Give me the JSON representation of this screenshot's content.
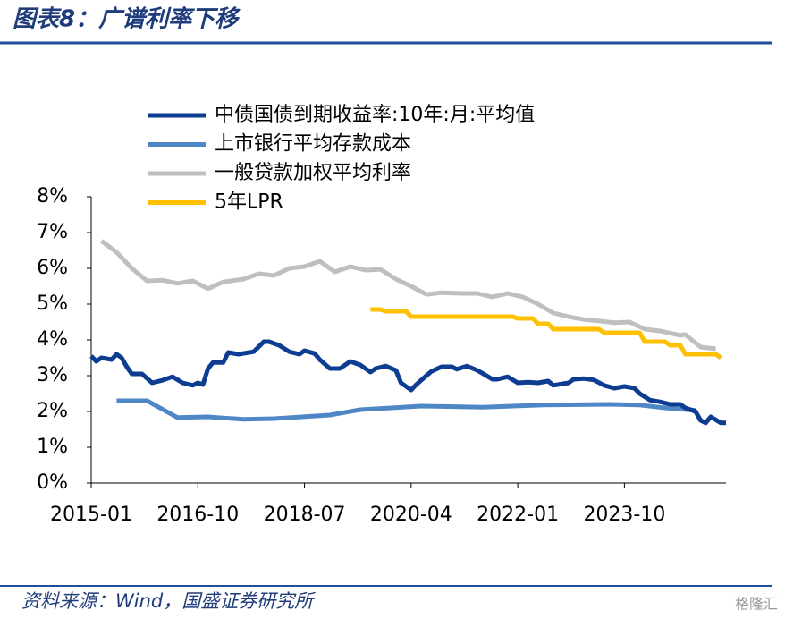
{
  "header": {
    "title": "图表8：广谱利率下移"
  },
  "chart_data": {
    "type": "line",
    "xlim": [
      "2015-01",
      "2025-06"
    ],
    "xticks": [
      "2015-01",
      "2016-10",
      "2018-07",
      "2020-04",
      "2022-01",
      "2023-10"
    ],
    "ylim": [
      0,
      8
    ],
    "yticks": [
      {
        "value": 0,
        "label": "0%"
      },
      {
        "value": 1,
        "label": "1%"
      },
      {
        "value": 2,
        "label": "2%"
      },
      {
        "value": 3,
        "label": "3%"
      },
      {
        "value": 4,
        "label": "4%"
      },
      {
        "value": 5,
        "label": "5%"
      },
      {
        "value": 6,
        "label": "6%"
      },
      {
        "value": 7,
        "label": "7%"
      },
      {
        "value": 8,
        "label": "8%"
      }
    ],
    "legend": "top-left",
    "series": [
      {
        "name": "中债国债到期收益率:10年:月:平均值",
        "color": "#0d3d91",
        "x": [
          "2015-01",
          "2015-02",
          "2015-03",
          "2015-05",
          "2015-06",
          "2015-07",
          "2015-08",
          "2015-09",
          "2015-11",
          "2016-01",
          "2016-03",
          "2016-05",
          "2016-07",
          "2016-09",
          "2016-10",
          "2016-11",
          "2016-12",
          "2017-01",
          "2017-03",
          "2017-04",
          "2017-06",
          "2017-09",
          "2017-11",
          "2017-12",
          "2018-02",
          "2018-04",
          "2018-06",
          "2018-07",
          "2018-09",
          "2018-10",
          "2018-12",
          "2019-02",
          "2019-04",
          "2019-06",
          "2019-08",
          "2019-09",
          "2019-11",
          "2020-01",
          "2020-02",
          "2020-04",
          "2020-05",
          "2020-07",
          "2020-08",
          "2020-10",
          "2020-12",
          "2021-01",
          "2021-03",
          "2021-05",
          "2021-06",
          "2021-08",
          "2021-09",
          "2021-11",
          "2022-01",
          "2022-03",
          "2022-05",
          "2022-07",
          "2022-08",
          "2022-11",
          "2022-12",
          "2023-02",
          "2023-04",
          "2023-06",
          "2023-08",
          "2023-10",
          "2023-12",
          "2024-01",
          "2024-03",
          "2024-05",
          "2024-07",
          "2024-09",
          "2024-10",
          "2024-12",
          "2025-01",
          "2025-02",
          "2025-03",
          "2025-05",
          "2025-06"
        ],
        "values": [
          3.55,
          3.4,
          3.5,
          3.45,
          3.6,
          3.5,
          3.25,
          3.05,
          3.05,
          2.8,
          2.87,
          2.97,
          2.8,
          2.73,
          2.8,
          2.75,
          3.2,
          3.37,
          3.37,
          3.65,
          3.6,
          3.67,
          3.95,
          3.95,
          3.85,
          3.67,
          3.6,
          3.7,
          3.62,
          3.45,
          3.2,
          3.2,
          3.4,
          3.3,
          3.1,
          3.2,
          3.27,
          3.15,
          2.8,
          2.6,
          2.75,
          3.0,
          3.12,
          3.25,
          3.25,
          3.18,
          3.27,
          3.15,
          3.07,
          2.9,
          2.9,
          2.97,
          2.8,
          2.82,
          2.8,
          2.85,
          2.73,
          2.8,
          2.9,
          2.92,
          2.88,
          2.73,
          2.65,
          2.7,
          2.65,
          2.5,
          2.32,
          2.27,
          2.2,
          2.2,
          2.1,
          2.0,
          1.75,
          1.68,
          1.85,
          1.68,
          1.68
        ]
      },
      {
        "name": "上市银行平均存款成本",
        "color": "#4f86c6",
        "x": [
          "2015-06",
          "2015-12",
          "2016-06",
          "2016-12",
          "2017-07",
          "2018-01",
          "2018-12",
          "2019-06",
          "2020-06",
          "2021-06",
          "2022-06",
          "2023-07",
          "2024-01",
          "2024-06",
          "2024-12"
        ],
        "values": [
          2.3,
          2.3,
          1.83,
          1.85,
          1.78,
          1.8,
          1.9,
          2.05,
          2.15,
          2.12,
          2.18,
          2.2,
          2.18,
          2.1,
          2.03
        ]
      },
      {
        "name": "一般贷款加权平均利率",
        "color": "#bfbfbf",
        "x": [
          "2015-03",
          "2015-06",
          "2015-09",
          "2015-12",
          "2016-03",
          "2016-06",
          "2016-09",
          "2016-12",
          "2017-03",
          "2017-07",
          "2017-10",
          "2018-01",
          "2018-04",
          "2018-07",
          "2018-10",
          "2019-01",
          "2019-04",
          "2019-07",
          "2019-10",
          "2020-01",
          "2020-04",
          "2020-07",
          "2020-10",
          "2021-02",
          "2021-05",
          "2021-08",
          "2021-11",
          "2022-02",
          "2022-05",
          "2022-08",
          "2022-11",
          "2023-02",
          "2023-05",
          "2023-08",
          "2023-11",
          "2024-02",
          "2024-05",
          "2024-09",
          "2024-10",
          "2025-01",
          "2025-04"
        ],
        "values": [
          6.77,
          6.45,
          6.0,
          5.65,
          5.67,
          5.58,
          5.65,
          5.43,
          5.62,
          5.7,
          5.85,
          5.8,
          6.0,
          6.05,
          6.2,
          5.9,
          6.05,
          5.95,
          5.97,
          5.7,
          5.5,
          5.27,
          5.32,
          5.3,
          5.3,
          5.2,
          5.3,
          5.2,
          5.0,
          4.75,
          4.65,
          4.57,
          4.53,
          4.48,
          4.5,
          4.3,
          4.25,
          4.13,
          4.15,
          3.8,
          3.75
        ]
      },
      {
        "name": "5年LPR",
        "color": "#ffc000",
        "x": [
          "2019-08",
          "2019-10",
          "2019-11",
          "2020-03",
          "2020-04",
          "2021-12",
          "2022-01",
          "2022-04",
          "2022-05",
          "2022-07",
          "2022-08",
          "2023-05",
          "2023-06",
          "2024-01",
          "2024-02",
          "2024-06",
          "2024-07",
          "2024-09",
          "2024-10",
          "2025-04",
          "2025-05"
        ],
        "values": [
          4.85,
          4.85,
          4.8,
          4.8,
          4.65,
          4.65,
          4.6,
          4.6,
          4.45,
          4.45,
          4.3,
          4.3,
          4.2,
          4.2,
          3.95,
          3.95,
          3.85,
          3.85,
          3.6,
          3.6,
          3.5
        ]
      }
    ]
  },
  "footer": {
    "source": "资料来源：Wind，国盛证券研究所",
    "watermark": "格隆汇"
  }
}
